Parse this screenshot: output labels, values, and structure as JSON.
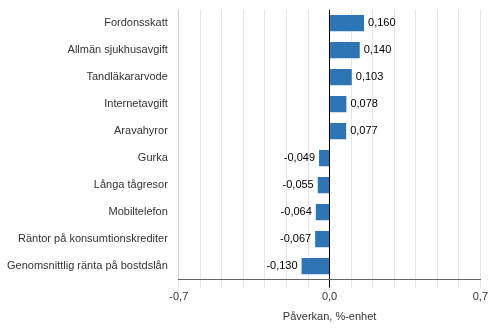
{
  "chart_data": {
    "type": "bar",
    "orientation": "horizontal",
    "categories": [
      "Genomsnittlig ränta på bostdslån",
      "Räntor på konsumtionskrediter",
      "Mobiltelefon",
      "Långa tågresor",
      "Gurka",
      "Aravahyror",
      "Internetavgift",
      "Tandläkararvode",
      "Allmän sjukhusavgift",
      "Fordonsskatt"
    ],
    "values": [
      -0.13,
      -0.067,
      -0.064,
      -0.055,
      -0.049,
      0.077,
      0.078,
      0.103,
      0.14,
      0.16
    ],
    "value_labels": [
      "-0,130",
      "-0,067",
      "-0,064",
      "-0,055",
      "-0,049",
      "0,077",
      "0,078",
      "0,103",
      "0,140",
      "0,160"
    ],
    "data_labels": true,
    "color": "#2E75B6",
    "xlabel": "Påverkan, %-enhet",
    "xlim": [
      -0.7,
      0.7
    ],
    "xticks": [
      {
        "value": -0.7,
        "label": "-0,7"
      },
      {
        "value": -0.6,
        "label": null
      },
      {
        "value": -0.5,
        "label": null
      },
      {
        "value": -0.4,
        "label": null
      },
      {
        "value": -0.3,
        "label": null
      },
      {
        "value": -0.2,
        "label": null
      },
      {
        "value": -0.1,
        "label": null
      },
      {
        "value": 0.0,
        "label": "0,0"
      },
      {
        "value": 0.1,
        "label": null
      },
      {
        "value": 0.2,
        "label": null
      },
      {
        "value": 0.3,
        "label": null
      },
      {
        "value": 0.4,
        "label": null
      },
      {
        "value": 0.5,
        "label": null
      },
      {
        "value": 0.6,
        "label": null
      },
      {
        "value": 0.7,
        "label": "0,7"
      }
    ],
    "grid": true
  }
}
